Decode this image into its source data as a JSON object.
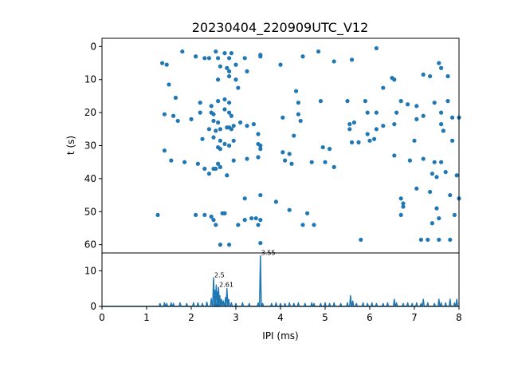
{
  "title": "20230404_220909UTC_V12",
  "colors": {
    "series": "#1f77b4",
    "axes": "#000000",
    "background": "#ffffff"
  },
  "chart_data": [
    {
      "type": "scatter",
      "title": "20230404_220909UTC_V12",
      "xlabel": "",
      "ylabel": "t (s)",
      "xlim": [
        0,
        8
      ],
      "ylim": [
        62.5,
        -2.5
      ],
      "y_inverted": true,
      "yticks": [
        "0",
        "10",
        "20",
        "30",
        "40",
        "50",
        "60"
      ],
      "grid": false,
      "points": [
        {
          "x": 1.8,
          "y": 1.5
        },
        {
          "x": 2.1,
          "y": 3.0
        },
        {
          "x": 2.3,
          "y": 3.5
        },
        {
          "x": 2.4,
          "y": 3.5
        },
        {
          "x": 2.55,
          "y": 1.5
        },
        {
          "x": 2.6,
          "y": 3.5
        },
        {
          "x": 2.75,
          "y": 2.0
        },
        {
          "x": 2.85,
          "y": 3.5
        },
        {
          "x": 2.9,
          "y": 2.0
        },
        {
          "x": 3.2,
          "y": 3.5
        },
        {
          "x": 3.55,
          "y": 3.0
        },
        {
          "x": 3.55,
          "y": 2.5
        },
        {
          "x": 4.5,
          "y": 3.0
        },
        {
          "x": 4.85,
          "y": 1.5
        },
        {
          "x": 5.2,
          "y": 4.5
        },
        {
          "x": 5.6,
          "y": 4.0
        },
        {
          "x": 6.15,
          "y": 0.5
        },
        {
          "x": 1.35,
          "y": 5.0
        },
        {
          "x": 1.45,
          "y": 5.5
        },
        {
          "x": 2.65,
          "y": 6.0
        },
        {
          "x": 2.8,
          "y": 6.5
        },
        {
          "x": 2.85,
          "y": 7.5
        },
        {
          "x": 3.0,
          "y": 5.5
        },
        {
          "x": 3.25,
          "y": 7.5
        },
        {
          "x": 4.0,
          "y": 5.5
        },
        {
          "x": 7.55,
          "y": 5.0
        },
        {
          "x": 7.6,
          "y": 6.5
        },
        {
          "x": 7.2,
          "y": 8.5
        },
        {
          "x": 7.75,
          "y": 9.0
        },
        {
          "x": 7.35,
          "y": 9.0
        },
        {
          "x": 6.5,
          "y": 9.5
        },
        {
          "x": 6.55,
          "y": 10.0
        },
        {
          "x": 1.5,
          "y": 11.5
        },
        {
          "x": 2.6,
          "y": 10.0
        },
        {
          "x": 2.85,
          "y": 9.0
        },
        {
          "x": 3.0,
          "y": 10.0
        },
        {
          "x": 3.05,
          "y": 12.5
        },
        {
          "x": 4.35,
          "y": 13.5
        },
        {
          "x": 6.3,
          "y": 12.5
        },
        {
          "x": 1.65,
          "y": 15.5
        },
        {
          "x": 2.2,
          "y": 17.0
        },
        {
          "x": 2.45,
          "y": 18.0
        },
        {
          "x": 2.6,
          "y": 16.5
        },
        {
          "x": 2.75,
          "y": 16.0
        },
        {
          "x": 2.85,
          "y": 17.0
        },
        {
          "x": 4.4,
          "y": 17.0
        },
        {
          "x": 4.9,
          "y": 16.5
        },
        {
          "x": 5.5,
          "y": 16.5
        },
        {
          "x": 5.9,
          "y": 16.5
        },
        {
          "x": 6.7,
          "y": 16.5
        },
        {
          "x": 6.85,
          "y": 17.5
        },
        {
          "x": 7.05,
          "y": 18.0
        },
        {
          "x": 7.45,
          "y": 17.0
        },
        {
          "x": 7.75,
          "y": 16.5
        },
        {
          "x": 1.4,
          "y": 20.5
        },
        {
          "x": 1.6,
          "y": 21.0
        },
        {
          "x": 2.2,
          "y": 20.0
        },
        {
          "x": 2.45,
          "y": 20.0
        },
        {
          "x": 2.5,
          "y": 20.5
        },
        {
          "x": 2.75,
          "y": 19.0
        },
        {
          "x": 2.85,
          "y": 20.0
        },
        {
          "x": 2.9,
          "y": 21.0
        },
        {
          "x": 4.05,
          "y": 21.5
        },
        {
          "x": 4.4,
          "y": 20.5
        },
        {
          "x": 5.95,
          "y": 20.0
        },
        {
          "x": 6.15,
          "y": 20.0
        },
        {
          "x": 6.6,
          "y": 20.0
        },
        {
          "x": 7.2,
          "y": 21.0
        },
        {
          "x": 7.6,
          "y": 20.0
        },
        {
          "x": 7.85,
          "y": 21.5
        },
        {
          "x": 8.0,
          "y": 21.5
        },
        {
          "x": 1.7,
          "y": 22.5
        },
        {
          "x": 2.0,
          "y": 22.0
        },
        {
          "x": 2.5,
          "y": 22.5
        },
        {
          "x": 2.6,
          "y": 23.0
        },
        {
          "x": 2.85,
          "y": 24.5
        },
        {
          "x": 3.1,
          "y": 23.0
        },
        {
          "x": 3.25,
          "y": 24.0
        },
        {
          "x": 4.45,
          "y": 22.5
        },
        {
          "x": 5.55,
          "y": 23.5
        },
        {
          "x": 5.65,
          "y": 23.0
        },
        {
          "x": 6.3,
          "y": 24.0
        },
        {
          "x": 6.55,
          "y": 23.5
        },
        {
          "x": 7.05,
          "y": 22.0
        },
        {
          "x": 7.6,
          "y": 23.5
        },
        {
          "x": 2.4,
          "y": 25.0
        },
        {
          "x": 2.55,
          "y": 25.5
        },
        {
          "x": 2.65,
          "y": 25.0
        },
        {
          "x": 2.8,
          "y": 24.5
        },
        {
          "x": 2.9,
          "y": 25.0
        },
        {
          "x": 2.95,
          "y": 24.0
        },
        {
          "x": 3.4,
          "y": 23.5
        },
        {
          "x": 3.5,
          "y": 26.5
        },
        {
          "x": 4.3,
          "y": 27.0
        },
        {
          "x": 5.55,
          "y": 25.0
        },
        {
          "x": 5.95,
          "y": 26.5
        },
        {
          "x": 6.15,
          "y": 25.0
        },
        {
          "x": 7.65,
          "y": 25.5
        },
        {
          "x": 2.25,
          "y": 28.0
        },
        {
          "x": 2.5,
          "y": 27.5
        },
        {
          "x": 2.65,
          "y": 28.5
        },
        {
          "x": 2.75,
          "y": 29.5
        },
        {
          "x": 2.85,
          "y": 30.0
        },
        {
          "x": 2.95,
          "y": 28.5
        },
        {
          "x": 3.5,
          "y": 29.5
        },
        {
          "x": 3.55,
          "y": 30.0
        },
        {
          "x": 5.6,
          "y": 29.0
        },
        {
          "x": 5.75,
          "y": 29.0
        },
        {
          "x": 6.0,
          "y": 28.5
        },
        {
          "x": 6.1,
          "y": 28.0
        },
        {
          "x": 7.0,
          "y": 28.5
        },
        {
          "x": 7.85,
          "y": 28.5
        },
        {
          "x": 1.4,
          "y": 31.5
        },
        {
          "x": 2.6,
          "y": 30.5
        },
        {
          "x": 2.65,
          "y": 31.0
        },
        {
          "x": 3.55,
          "y": 31.0
        },
        {
          "x": 4.05,
          "y": 32.0
        },
        {
          "x": 4.2,
          "y": 32.5
        },
        {
          "x": 4.95,
          "y": 30.5
        },
        {
          "x": 5.1,
          "y": 31.0
        },
        {
          "x": 1.55,
          "y": 34.5
        },
        {
          "x": 1.85,
          "y": 35.0
        },
        {
          "x": 2.15,
          "y": 35.5
        },
        {
          "x": 2.6,
          "y": 35.5
        },
        {
          "x": 2.95,
          "y": 34.5
        },
        {
          "x": 3.25,
          "y": 34.0
        },
        {
          "x": 3.5,
          "y": 33.5
        },
        {
          "x": 4.1,
          "y": 34.5
        },
        {
          "x": 4.25,
          "y": 35.5
        },
        {
          "x": 4.7,
          "y": 35.0
        },
        {
          "x": 5.0,
          "y": 35.0
        },
        {
          "x": 5.2,
          "y": 36.5
        },
        {
          "x": 6.55,
          "y": 33.0
        },
        {
          "x": 6.9,
          "y": 34.5
        },
        {
          "x": 7.2,
          "y": 34.0
        },
        {
          "x": 7.45,
          "y": 35.0
        },
        {
          "x": 7.6,
          "y": 35.0
        },
        {
          "x": 2.3,
          "y": 37.0
        },
        {
          "x": 2.4,
          "y": 38.5
        },
        {
          "x": 2.5,
          "y": 37.0
        },
        {
          "x": 2.55,
          "y": 37.0
        },
        {
          "x": 2.65,
          "y": 36.5
        },
        {
          "x": 2.8,
          "y": 39.0
        },
        {
          "x": 7.4,
          "y": 38.5
        },
        {
          "x": 7.5,
          "y": 39.5
        },
        {
          "x": 7.7,
          "y": 38.0
        },
        {
          "x": 7.95,
          "y": 39.0
        },
        {
          "x": 3.2,
          "y": 46.0
        },
        {
          "x": 3.55,
          "y": 45.0
        },
        {
          "x": 3.9,
          "y": 47.0
        },
        {
          "x": 6.7,
          "y": 46.0
        },
        {
          "x": 6.75,
          "y": 47.5
        },
        {
          "x": 7.05,
          "y": 43.0
        },
        {
          "x": 7.35,
          "y": 44.0
        },
        {
          "x": 7.8,
          "y": 45.0
        },
        {
          "x": 8.0,
          "y": 46.0
        },
        {
          "x": 7.5,
          "y": 49.0
        },
        {
          "x": 6.75,
          "y": 48.5
        },
        {
          "x": 1.25,
          "y": 51.0
        },
        {
          "x": 2.1,
          "y": 51.0
        },
        {
          "x": 2.3,
          "y": 51.0
        },
        {
          "x": 2.45,
          "y": 51.5
        },
        {
          "x": 2.5,
          "y": 52.5
        },
        {
          "x": 2.55,
          "y": 54.0
        },
        {
          "x": 2.7,
          "y": 50.5
        },
        {
          "x": 2.75,
          "y": 50.5
        },
        {
          "x": 3.05,
          "y": 54.0
        },
        {
          "x": 3.2,
          "y": 52.5
        },
        {
          "x": 3.35,
          "y": 52.0
        },
        {
          "x": 3.45,
          "y": 52.0
        },
        {
          "x": 3.5,
          "y": 54.0
        },
        {
          "x": 3.55,
          "y": 52.5
        },
        {
          "x": 4.2,
          "y": 49.5
        },
        {
          "x": 4.5,
          "y": 54.0
        },
        {
          "x": 4.6,
          "y": 50.5
        },
        {
          "x": 4.75,
          "y": 54.0
        },
        {
          "x": 6.7,
          "y": 51.0
        },
        {
          "x": 7.4,
          "y": 53.5
        },
        {
          "x": 7.55,
          "y": 52.0
        },
        {
          "x": 7.9,
          "y": 51.0
        },
        {
          "x": 2.65,
          "y": 60.0
        },
        {
          "x": 2.85,
          "y": 60.0
        },
        {
          "x": 3.55,
          "y": 59.5
        },
        {
          "x": 5.8,
          "y": 58.5
        },
        {
          "x": 7.15,
          "y": 58.5
        },
        {
          "x": 7.3,
          "y": 58.5
        },
        {
          "x": 7.55,
          "y": 58.5
        },
        {
          "x": 7.8,
          "y": 58.5
        }
      ]
    },
    {
      "type": "line",
      "title": "",
      "xlabel": "IPI (ms)",
      "ylabel": "",
      "xlim": [
        0,
        8
      ],
      "ylim": [
        0,
        15
      ],
      "xticks": [
        "0",
        "1",
        "2",
        "3",
        "4",
        "5",
        "6",
        "7",
        "8"
      ],
      "yticks": [
        "0",
        "10"
      ],
      "grid": false,
      "annotations": [
        {
          "x": 2.5,
          "y": 8.0,
          "text": "2.5"
        },
        {
          "x": 2.61,
          "y": 5.3,
          "text": "2.61"
        },
        {
          "x": 3.55,
          "y": 14.2,
          "text": "3.55"
        }
      ],
      "peaks": [
        [
          1.3,
          0.8
        ],
        [
          1.4,
          1.0
        ],
        [
          1.45,
          0.8
        ],
        [
          1.55,
          1.0
        ],
        [
          1.6,
          0.8
        ],
        [
          1.75,
          1.0
        ],
        [
          1.9,
          0.8
        ],
        [
          2.05,
          1.0
        ],
        [
          2.15,
          1.0
        ],
        [
          2.25,
          0.8
        ],
        [
          2.35,
          1.2
        ],
        [
          2.45,
          2.2
        ],
        [
          2.5,
          8.0
        ],
        [
          2.53,
          4.5
        ],
        [
          2.56,
          6.0
        ],
        [
          2.59,
          4.0
        ],
        [
          2.61,
          5.3
        ],
        [
          2.64,
          3.0
        ],
        [
          2.68,
          2.0
        ],
        [
          2.72,
          1.5
        ],
        [
          2.77,
          2.5
        ],
        [
          2.8,
          5.0
        ],
        [
          2.84,
          2.0
        ],
        [
          2.9,
          1.0
        ],
        [
          3.0,
          0.8
        ],
        [
          3.15,
          1.0
        ],
        [
          3.3,
          0.8
        ],
        [
          3.5,
          1.0
        ],
        [
          3.55,
          14.2
        ],
        [
          3.6,
          0.8
        ],
        [
          3.8,
          0.8
        ],
        [
          3.9,
          1.0
        ],
        [
          4.0,
          0.8
        ],
        [
          4.1,
          0.8
        ],
        [
          4.2,
          1.0
        ],
        [
          4.3,
          0.8
        ],
        [
          4.4,
          1.0
        ],
        [
          4.55,
          0.8
        ],
        [
          4.7,
          1.0
        ],
        [
          4.75,
          0.8
        ],
        [
          4.9,
          0.8
        ],
        [
          5.0,
          1.0
        ],
        [
          5.1,
          0.8
        ],
        [
          5.2,
          1.0
        ],
        [
          5.35,
          0.8
        ],
        [
          5.5,
          1.0
        ],
        [
          5.57,
          3.0
        ],
        [
          5.62,
          1.5
        ],
        [
          5.7,
          0.8
        ],
        [
          5.85,
          1.0
        ],
        [
          5.95,
          0.8
        ],
        [
          6.05,
          1.0
        ],
        [
          6.15,
          0.8
        ],
        [
          6.3,
          0.8
        ],
        [
          6.4,
          1.0
        ],
        [
          6.55,
          2.0
        ],
        [
          6.6,
          1.0
        ],
        [
          6.75,
          0.8
        ],
        [
          6.85,
          1.0
        ],
        [
          6.95,
          0.8
        ],
        [
          7.05,
          1.0
        ],
        [
          7.15,
          0.8
        ],
        [
          7.2,
          2.0
        ],
        [
          7.3,
          1.0
        ],
        [
          7.45,
          0.8
        ],
        [
          7.55,
          2.0
        ],
        [
          7.6,
          1.0
        ],
        [
          7.7,
          1.0
        ],
        [
          7.8,
          2.0
        ],
        [
          7.9,
          1.0
        ],
        [
          7.95,
          2.0
        ]
      ]
    }
  ]
}
